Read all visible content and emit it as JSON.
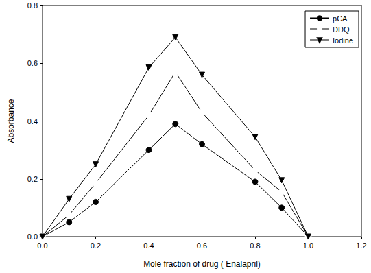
{
  "chart_data": {
    "type": "line",
    "x_label": "Mole fraction of drug ( Enalapril)",
    "y_label": "Absorbance",
    "x": [
      0,
      0.1,
      0.2,
      0.4,
      0.5,
      0.6,
      0.8,
      0.9,
      1.0
    ],
    "series": [
      {
        "name": "pCA",
        "color": "#000000",
        "marker": "circle",
        "line_style": "solid",
        "values": [
          0,
          0.05,
          0.12,
          0.3,
          0.39,
          0.32,
          0.19,
          0.1,
          0
        ]
      },
      {
        "name": "DDQ",
        "color": "#000000",
        "marker": "open_circle",
        "line_style": "solid",
        "values": [
          0,
          0.075,
          0.185,
          0.42,
          0.57,
          0.43,
          0.23,
          0.155,
          0
        ]
      },
      {
        "name": "Iodine",
        "color": "#000000",
        "marker": "triangle_down",
        "line_style": "solid",
        "values": [
          0,
          0.13,
          0.25,
          0.585,
          0.69,
          0.56,
          0.345,
          0.195,
          0
        ]
      }
    ],
    "xlim": [
      0,
      1.2
    ],
    "xticks": [
      {
        "value": 0,
        "label": "0.0"
      },
      {
        "value": 0.2,
        "label": "0.2"
      },
      {
        "value": 0.4,
        "label": "0.4"
      },
      {
        "value": 0.6,
        "label": "0.6"
      },
      {
        "value": 0.8,
        "label": "0.8"
      },
      {
        "value": 1.0,
        "label": "1.0"
      },
      {
        "value": 1.2,
        "label": "1.2"
      }
    ],
    "ylim": [
      0,
      0.8
    ],
    "yticks": [
      {
        "value": 0,
        "label": "0.0"
      },
      {
        "value": 0.2,
        "label": "0.2"
      },
      {
        "value": 0.4,
        "label": "0.4"
      },
      {
        "value": 0.6,
        "label": "0.6"
      },
      {
        "value": 0.8,
        "label": "0.8"
      }
    ],
    "legend": "top-right",
    "grid": false
  }
}
